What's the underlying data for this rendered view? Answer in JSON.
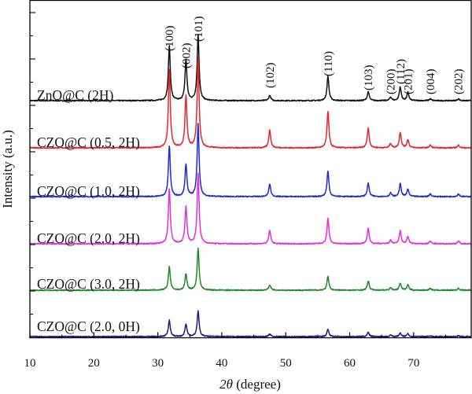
{
  "chart_data": {
    "type": "line",
    "xlabel_symbol": "2θ",
    "xlabel_unit": " (degree)",
    "ylabel": "Intensity (a.u.)",
    "xlim": [
      10,
      79
    ],
    "xticks": [
      10,
      20,
      30,
      40,
      50,
      60,
      70
    ],
    "peak_labels": [
      {
        "text": "(100)",
        "x": 31.8
      },
      {
        "text": "(002)",
        "x": 34.4
      },
      {
        "text": "(101)",
        "x": 36.3
      },
      {
        "text": "(102)",
        "x": 47.5
      },
      {
        "text": "(110)",
        "x": 56.6
      },
      {
        "text": "(103)",
        "x": 62.9
      },
      {
        "text": "(200)",
        "x": 66.4
      },
      {
        "text": "(112)",
        "x": 67.9
      },
      {
        "text": "(201)",
        "x": 69.1
      },
      {
        "text": "(004)",
        "x": 72.6
      },
      {
        "text": "(202)",
        "x": 77.0
      }
    ],
    "peaks_2theta": [
      31.8,
      34.4,
      36.3,
      47.5,
      56.6,
      62.9,
      66.4,
      67.9,
      69.1,
      72.6,
      77.0
    ],
    "series": [
      {
        "name": "ZnO@C (2H)",
        "color": "#111111",
        "relative_heights": [
          0.6,
          0.45,
          0.73,
          0.06,
          0.27,
          0.1,
          0.04,
          0.15,
          0.09,
          0.02,
          0.02
        ]
      },
      {
        "name": "CZO@C (0.5, 2H)",
        "color": "#e8242b",
        "relative_heights": [
          0.86,
          0.57,
          1.0,
          0.2,
          0.4,
          0.22,
          0.05,
          0.17,
          0.09,
          0.03,
          0.03
        ]
      },
      {
        "name": "CZO@C (1.0, 2H)",
        "color": "#1a2bd8",
        "relative_heights": [
          0.56,
          0.35,
          0.8,
          0.14,
          0.28,
          0.15,
          0.04,
          0.14,
          0.08,
          0.03,
          0.03
        ]
      },
      {
        "name": "CZO@C (2.0, 2H)",
        "color": "#e02ee0",
        "relative_heights": [
          0.61,
          0.41,
          0.78,
          0.15,
          0.28,
          0.17,
          0.04,
          0.14,
          0.08,
          0.03,
          0.03
        ]
      },
      {
        "name": "CZO@C (3.0, 2H)",
        "color": "#1e8a26",
        "relative_heights": [
          0.26,
          0.18,
          0.46,
          0.06,
          0.15,
          0.1,
          0.03,
          0.08,
          0.06,
          0.02,
          0.02
        ]
      },
      {
        "name": "CZO@C (2.0, 0H)",
        "color": "#1a1a8a",
        "relative_heights": [
          0.18,
          0.14,
          0.28,
          0.03,
          0.08,
          0.05,
          0.02,
          0.04,
          0.03,
          0.01,
          0.01
        ]
      }
    ]
  }
}
